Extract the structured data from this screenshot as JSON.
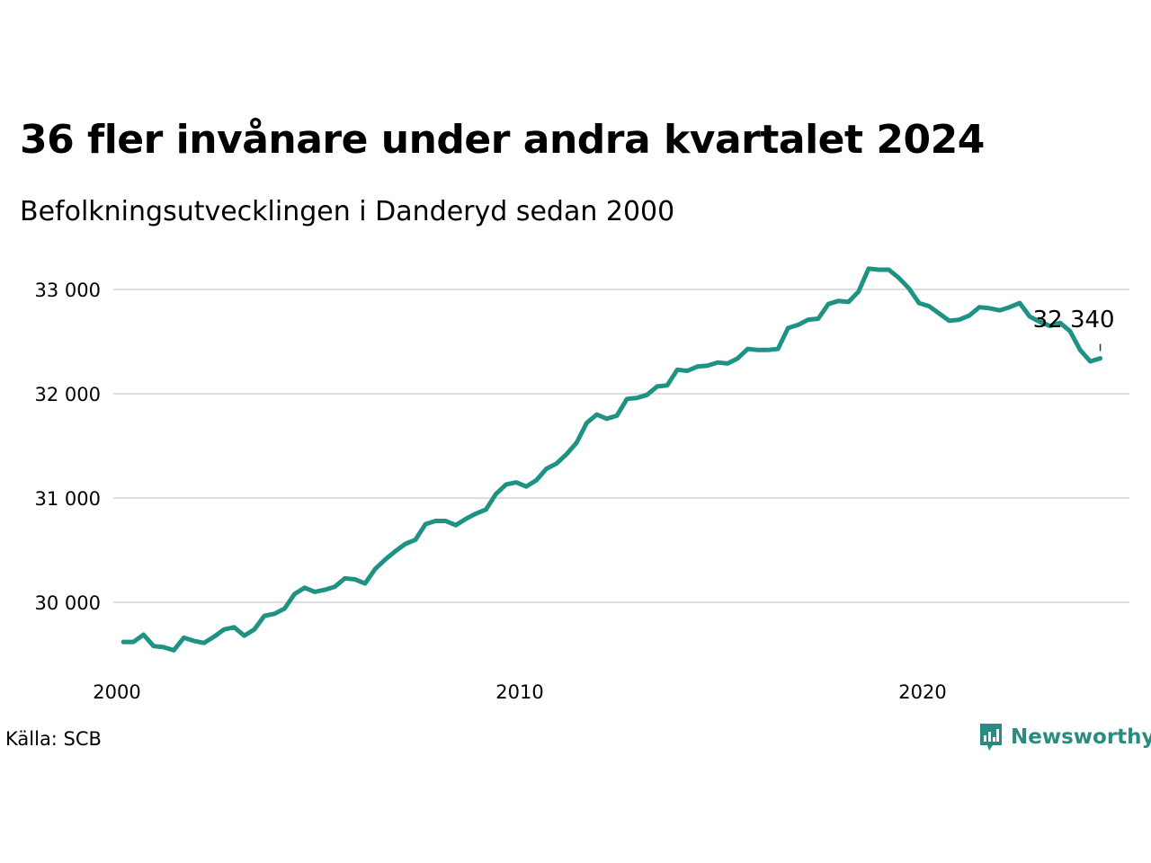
{
  "header": {
    "title": "36 fler invånare under andra kvartalet 2024",
    "subtitle": "Befolkningsutvecklingen i Danderyd sedan 2000"
  },
  "footer": {
    "source": "Källa: SCB",
    "brand": "Newsworthy"
  },
  "colors": {
    "line": "#1e9283",
    "grid": "#dddddd",
    "text": "#000000",
    "brand": "#2a8c80"
  },
  "chart_data": {
    "type": "line",
    "title": "36 fler invånare under andra kvartalet 2024",
    "subtitle": "Befolkningsutvecklingen i Danderyd sedan 2000",
    "xlabel": "",
    "ylabel": "",
    "y_ticks": [
      30000,
      31000,
      32000,
      33000
    ],
    "y_tick_labels": [
      "30 000",
      "31 000",
      "32 000",
      "33 000"
    ],
    "x_ticks": [
      2000,
      2010,
      2020
    ],
    "x_tick_labels": [
      "2000",
      "2010",
      "2020"
    ],
    "xlim": [
      2000,
      2025.25
    ],
    "ylim": [
      29400,
      33350
    ],
    "grid": true,
    "legend": "none",
    "end_label": "32 340",
    "series": [
      {
        "x": [
          2000.25,
          2000.5,
          2000.75,
          2001,
          2001.25,
          2001.5,
          2001.75,
          2002,
          2002.25,
          2002.5,
          2002.75,
          2003,
          2003.25,
          2003.5,
          2003.75,
          2004,
          2004.25,
          2004.5,
          2004.75,
          2005,
          2005.25,
          2005.5,
          2005.75,
          2006,
          2006.25,
          2006.5,
          2006.75,
          2007,
          2007.25,
          2007.5,
          2007.75,
          2008,
          2008.25,
          2008.5,
          2008.75,
          2009,
          2009.25,
          2009.5,
          2009.75,
          2010,
          2010.25,
          2010.5,
          2010.75,
          2011,
          2011.25,
          2011.5,
          2011.75,
          2012,
          2012.25,
          2012.5,
          2012.75,
          2013,
          2013.25,
          2013.5,
          2013.75,
          2014,
          2014.25,
          2014.5,
          2014.75,
          2015,
          2015.25,
          2015.5,
          2015.75,
          2016,
          2016.25,
          2016.5,
          2016.75,
          2017,
          2017.25,
          2017.5,
          2017.75,
          2018,
          2018.25,
          2018.5,
          2018.75,
          2019,
          2019.25,
          2019.5,
          2019.75,
          2020,
          2020.25,
          2020.5,
          2020.75,
          2021,
          2021.25,
          2021.5,
          2021.75,
          2022,
          2022.25,
          2022.5,
          2022.75,
          2023,
          2023.25,
          2023.5,
          2023.75,
          2024,
          2024.25,
          2024.5
        ],
        "values": [
          29620,
          29620,
          29690,
          29580,
          29570,
          29540,
          29660,
          29630,
          29610,
          29670,
          29740,
          29760,
          29680,
          29740,
          29870,
          29890,
          29940,
          30080,
          30140,
          30100,
          30120,
          30150,
          30230,
          30220,
          30180,
          30320,
          30410,
          30490,
          30560,
          30600,
          30750,
          30780,
          30780,
          30740,
          30800,
          30850,
          30890,
          31040,
          31130,
          31150,
          31110,
          31170,
          31280,
          31330,
          31420,
          31530,
          31720,
          31800,
          31760,
          31790,
          31950,
          31960,
          31990,
          32070,
          32080,
          32230,
          32220,
          32260,
          32270,
          32300,
          32290,
          32340,
          32430,
          32420,
          32420,
          32430,
          32630,
          32660,
          32710,
          32720,
          32860,
          32890,
          32880,
          32980,
          33200,
          33190,
          33190,
          33110,
          33010,
          32870,
          32840,
          32770,
          32700,
          32710,
          32750,
          32830,
          32820,
          32800,
          32830,
          32870,
          32740,
          32690,
          32650,
          32680,
          32600,
          32420,
          32310,
          32340
        ]
      }
    ]
  }
}
